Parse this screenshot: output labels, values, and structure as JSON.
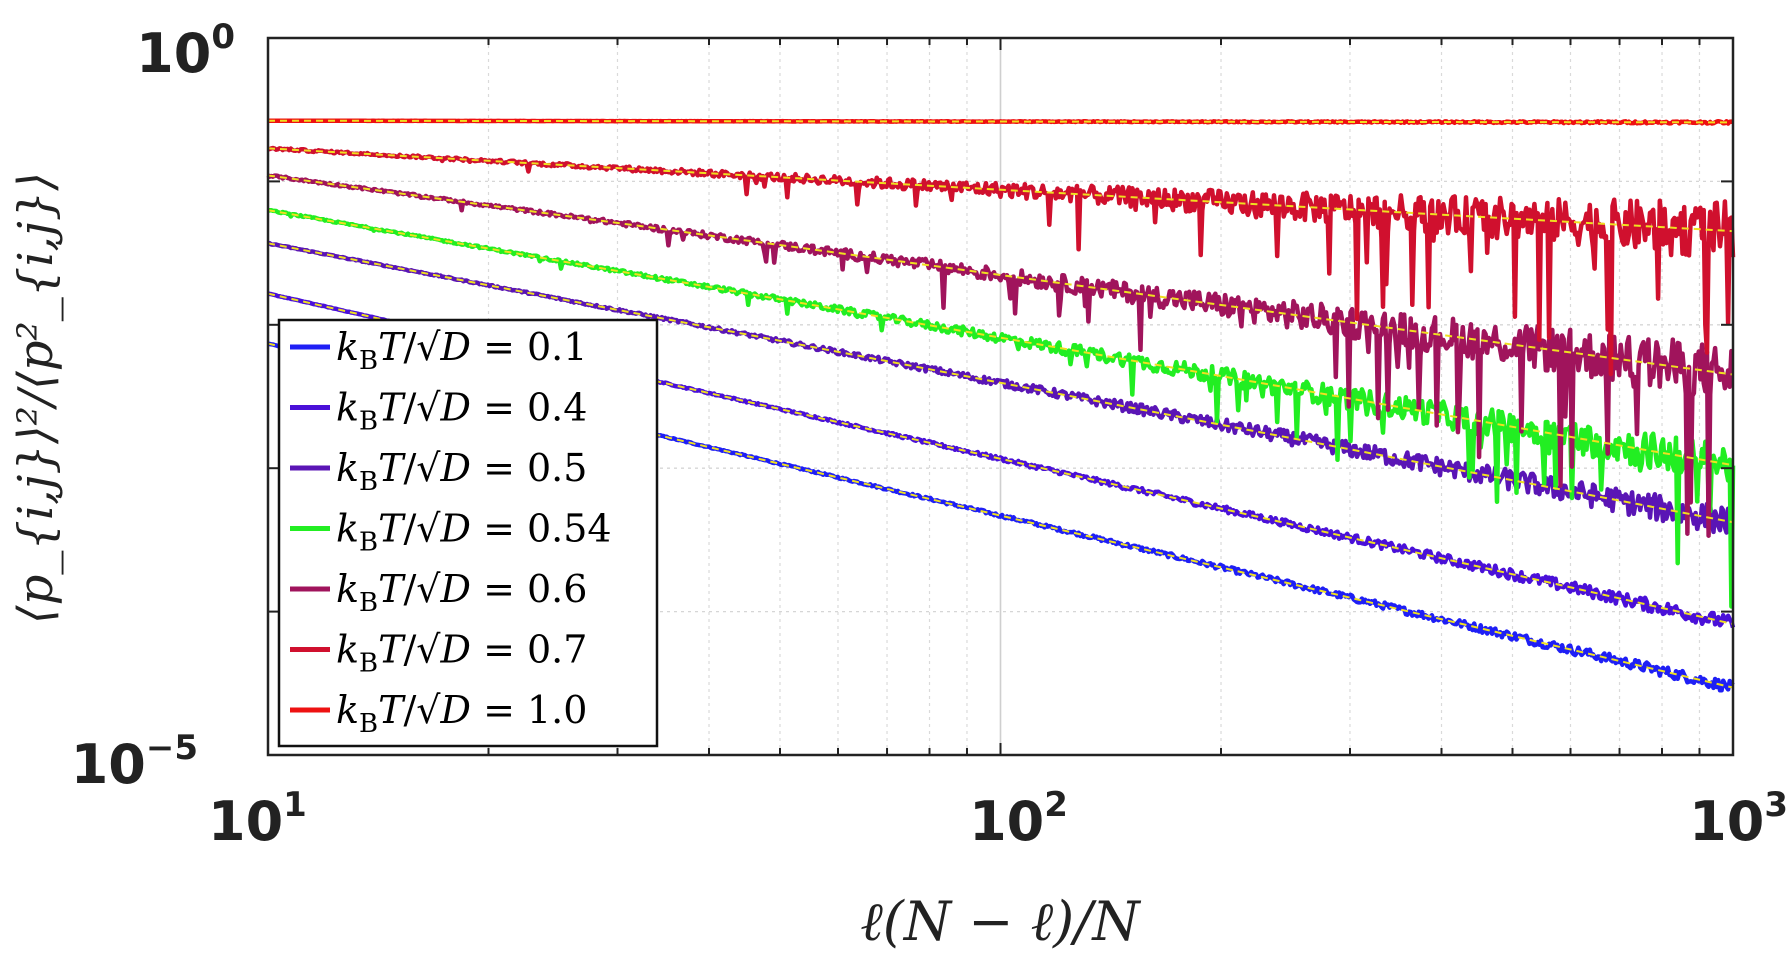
{
  "chart_data": {
    "type": "line",
    "xscale": "log",
    "yscale": "log",
    "xlim": [
      10,
      1000
    ],
    "ylim": [
      1e-05,
      1
    ],
    "xlabel": "ℓ(N − ℓ)/N",
    "ylabel": "⟨p_{i,j}⟩²/⟨p²_{i,j}⟩",
    "x_ticks": [
      {
        "value": 10,
        "base": "10",
        "exp": "1"
      },
      {
        "value": 100,
        "base": "10",
        "exp": "2"
      },
      {
        "value": 1000,
        "base": "10",
        "exp": "3"
      }
    ],
    "y_ticks": [
      {
        "value": 1,
        "base": "10",
        "exp": "0"
      },
      {
        "value": 1e-05,
        "base": "10",
        "exp": "−5"
      }
    ],
    "grid": true,
    "legend_position": "lower-left",
    "series": [
      {
        "name": "k_B T/√D = 0.1",
        "legend_label": "kBT/√D = 0.1",
        "value": "0.1",
        "color": "#1f1ff5",
        "y_at_10": 0.0074,
        "y_at_1000": 2.95e-05,
        "noise": 0.02
      },
      {
        "name": "k_B T/√D = 0.4",
        "legend_label": "kBT/√D = 0.4",
        "value": "0.4",
        "color": "#4a10d8",
        "y_at_10": 0.0165,
        "y_at_1000": 8.2e-05,
        "noise": 0.025
      },
      {
        "name": "k_B T/√D = 0.5",
        "legend_label": "kBT/√D = 0.5",
        "value": "0.5",
        "color": "#5a15b5",
        "y_at_10": 0.037,
        "y_at_1000": 0.00042,
        "noise": 0.05
      },
      {
        "name": "k_B T/√D = 0.54",
        "legend_label": "kBT/√D = 0.54",
        "value": "0.54",
        "color": "#22ee22",
        "y_at_10": 0.063,
        "y_at_1000": 0.00105,
        "noise": 0.07
      },
      {
        "name": "k_B T/√D = 0.6",
        "legend_label": "kBT/√D = 0.6",
        "value": "0.6",
        "color": "#a0145c",
        "y_at_10": 0.11,
        "y_at_1000": 0.0045,
        "noise": 0.1
      },
      {
        "name": "k_B T/√D = 0.7",
        "legend_label": "kBT/√D = 0.7",
        "value": "0.7",
        "color": "#d0102e",
        "y_at_10": 0.17,
        "y_at_1000": 0.045,
        "noise": 0.1
      },
      {
        "name": "k_B T/√D = 1.0",
        "legend_label": "kBT/√D = 1.0",
        "value": "1.0",
        "color": "#ee1111",
        "y_at_10": 0.265,
        "y_at_1000": 0.258,
        "noise": 0.004
      }
    ],
    "fit_line_color": "#f0e020"
  }
}
